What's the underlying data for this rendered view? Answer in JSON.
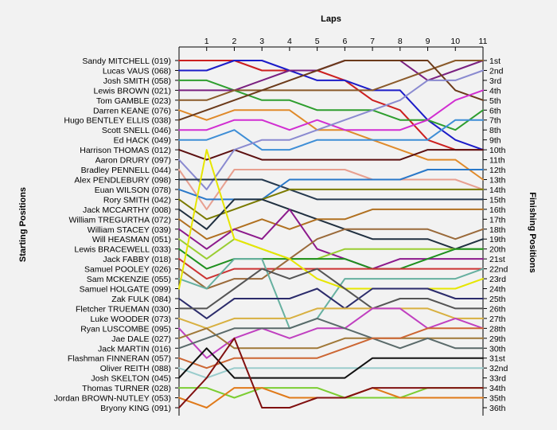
{
  "chart_data": {
    "type": "line",
    "title": "",
    "xlabel": "Laps",
    "ylabel_left": "Starting Positions",
    "ylabel_right": "Finishing Positions",
    "laps": [
      "1",
      "2",
      "3",
      "4",
      "5",
      "6",
      "7",
      "8",
      "9",
      "10",
      "11"
    ],
    "drivers": [
      "Sandy MITCHELL (019)",
      "Lucas VAUS (068)",
      "Josh SMITH (058)",
      "Lewis BROWN (021)",
      "Tom GAMBLE (023)",
      "Darren KEANE (076)",
      "Hugo BENTLEY ELLIS (038)",
      "Scott SNELL (046)",
      "Ed HACK (049)",
      "Harrison THOMAS (012)",
      "Aaron DRURY (097)",
      "Bradley PENNELL (044)",
      "Alex PENDLEBURY (098)",
      "Euan WILSON (078)",
      "Rory SMITH (042)",
      "Jack MCCARTHY (008)",
      "William TREGURTHA (072)",
      "William STACEY (039)",
      "Will HEASMAN (051)",
      "Lewis BRACEWELL (033)",
      "Jack FABBY (018)",
      "Samuel POOLEY (026)",
      "Sam MCKENZIE (055)",
      "Samuel HOLGATE (099)",
      "Zak FULK (084)",
      "Fletcher TRUEMAN (030)",
      "Luke WOODER (073)",
      "Ryan LUSCOMBE (095)",
      "Jae DALE (027)",
      "Jack MARTIN (016)",
      "Flashman FINNERAN (057)",
      "Oliver REITH (088)",
      "Josh SKELTON (045)",
      "Thomas TURNER (028)",
      "Jordan BROWN-NUTLEY (053)",
      "Bryony KING (091)"
    ],
    "finishing_labels": [
      "1st",
      "2nd",
      "3rd",
      "4th",
      "5th",
      "6th",
      "7th",
      "8th",
      "9th",
      "10th",
      "11th",
      "12th",
      "13th",
      "14th",
      "15th",
      "16th",
      "17th",
      "18th",
      "19th",
      "20th",
      "21st",
      "22nd",
      "23rd",
      "24th",
      "25th",
      "26th",
      "27th",
      "28th",
      "29th",
      "30th",
      "31st",
      "32nd",
      "33rd",
      "34th",
      "35th",
      "36th"
    ],
    "series": [
      {
        "color": "#cc1f1f",
        "values": [
          1,
          1,
          2,
          2,
          2,
          3,
          5,
          6,
          9,
          10,
          10
        ]
      },
      {
        "color": "#1c1cc8",
        "values": [
          2,
          1,
          1,
          2,
          3,
          3,
          4,
          4,
          7,
          9,
          10
        ]
      },
      {
        "color": "#2e9e2e",
        "values": [
          3,
          4,
          5,
          5,
          6,
          6,
          6,
          7,
          7,
          8,
          6
        ]
      },
      {
        "color": "#7a2080",
        "values": [
          4,
          4,
          3,
          2,
          2,
          1,
          1,
          1,
          3,
          2,
          1
        ]
      },
      {
        "color": "#8a5a2a",
        "values": [
          5,
          4,
          4,
          4,
          4,
          4,
          4,
          3,
          2,
          1,
          1
        ]
      },
      {
        "color": "#e08a2a",
        "values": [
          7,
          6,
          6,
          6,
          8,
          8,
          9,
          10,
          11,
          11,
          13
        ]
      },
      {
        "color": "#6b3a1a",
        "values": [
          6,
          5,
          4,
          3,
          2,
          1,
          1,
          1,
          1,
          4,
          5
        ]
      },
      {
        "color": "#d12ed1",
        "values": [
          8,
          7,
          7,
          8,
          7,
          8,
          8,
          8,
          7,
          5,
          4
        ]
      },
      {
        "color": "#3e8ed6",
        "values": [
          9,
          8,
          10,
          10,
          9,
          9,
          9,
          9,
          9,
          7,
          7
        ]
      },
      {
        "color": "#5c1010",
        "values": [
          11,
          10,
          11,
          11,
          11,
          11,
          11,
          11,
          10,
          10,
          10
        ]
      },
      {
        "color": "#8a8ad0",
        "values": [
          14,
          10,
          9,
          9,
          8,
          7,
          6,
          5,
          3,
          3,
          2
        ]
      },
      {
        "color": "#e8a090",
        "values": [
          16,
          12,
          12,
          12,
          12,
          12,
          13,
          13,
          13,
          13,
          14
        ]
      },
      {
        "color": "#263a50",
        "values": [
          13,
          13,
          13,
          14,
          15,
          15,
          15,
          15,
          15,
          15,
          15
        ]
      },
      {
        "color": "#2a78c8",
        "values": [
          15,
          15,
          15,
          13,
          13,
          13,
          13,
          13,
          12,
          12,
          12
        ]
      },
      {
        "color": "#7a7a00",
        "values": [
          17,
          16,
          15,
          14,
          14,
          14,
          14,
          14,
          14,
          14,
          14
        ]
      },
      {
        "color": "#203040",
        "values": [
          18,
          15,
          15,
          16,
          17,
          18,
          19,
          19,
          19,
          20,
          19
        ]
      },
      {
        "color": "#b07020",
        "values": [
          19,
          18,
          17,
          18,
          17,
          17,
          16,
          16,
          16,
          16,
          16
        ]
      },
      {
        "color": "#8c1a8c",
        "values": [
          20,
          18,
          19,
          16,
          20,
          21,
          22,
          21,
          21,
          21,
          21
        ]
      },
      {
        "color": "#9acd32",
        "values": [
          21,
          19,
          20,
          21,
          21,
          20,
          20,
          20,
          20,
          20,
          20
        ]
      },
      {
        "color": "#1e901e",
        "values": [
          22,
          21,
          21,
          21,
          21,
          21,
          22,
          22,
          21,
          20,
          20
        ]
      },
      {
        "color": "#cc3333",
        "values": [
          23,
          22,
          22,
          22,
          22,
          22,
          22,
          22,
          22,
          22,
          22
        ]
      },
      {
        "color": "#9a6a3a",
        "values": [
          24,
          23,
          23,
          21,
          19,
          18,
          18,
          18,
          18,
          19,
          18
        ]
      },
      {
        "color": "#66b0a0",
        "values": [
          24,
          21,
          21,
          28,
          27,
          23,
          23,
          23,
          23,
          23,
          22
        ]
      },
      {
        "color": "#e6e600",
        "values": [
          10,
          19,
          20,
          21,
          23,
          24,
          24,
          24,
          24,
          24,
          23
        ]
      },
      {
        "color": "#2b2b6b",
        "values": [
          27,
          25,
          25,
          25,
          24,
          26,
          24,
          24,
          24,
          25,
          25
        ]
      },
      {
        "color": "#555555",
        "values": [
          26,
          24,
          22,
          23,
          22,
          24,
          26,
          25,
          25,
          26,
          26
        ]
      },
      {
        "color": "#d8b040",
        "values": [
          28,
          27,
          27,
          27,
          26,
          26,
          26,
          26,
          26,
          27,
          27
        ]
      },
      {
        "color": "#c040c0",
        "values": [
          31,
          29,
          28,
          29,
          28,
          28,
          26,
          26,
          28,
          27,
          28
        ]
      },
      {
        "color": "#a07838",
        "values": [
          28,
          30,
          30,
          30,
          30,
          29,
          29,
          29,
          29,
          29,
          29
        ]
      },
      {
        "color": "#5a6a6a",
        "values": [
          29,
          28,
          28,
          28,
          27,
          28,
          29,
          30,
          29,
          30,
          30
        ]
      },
      {
        "color": "#cc6633",
        "values": [
          32,
          31,
          31,
          31,
          31,
          30,
          29,
          29,
          28,
          28,
          28
        ]
      },
      {
        "color": "#99cccc",
        "values": [
          33,
          32,
          32,
          32,
          32,
          32,
          32,
          32,
          32,
          32,
          32
        ]
      },
      {
        "color": "#111111",
        "values": [
          30,
          33,
          33,
          33,
          33,
          33,
          31,
          31,
          31,
          31,
          31
        ]
      },
      {
        "color": "#7ccd32",
        "values": [
          34,
          35,
          34,
          34,
          34,
          35,
          35,
          35,
          34,
          34,
          34
        ]
      },
      {
        "color": "#e07a1a",
        "values": [
          36,
          34,
          34,
          35,
          35,
          35,
          34,
          35,
          35,
          35,
          35
        ]
      },
      {
        "color": "#801010",
        "values": [
          33,
          29,
          36,
          36,
          35,
          35,
          34,
          34,
          34,
          34,
          34
        ]
      }
    ]
  }
}
